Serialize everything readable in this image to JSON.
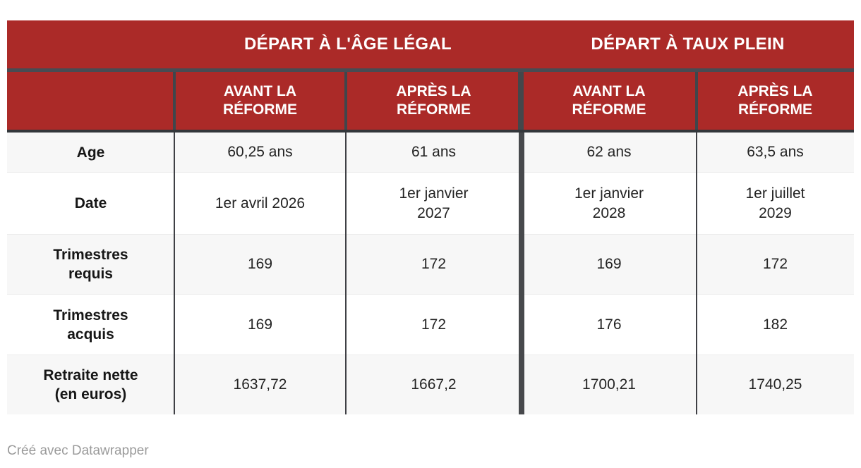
{
  "table": {
    "group_headers": [
      {
        "label": "DÉPART À L'ÂGE LÉGAL"
      },
      {
        "label": "DÉPART À TAUX PLEIN"
      }
    ],
    "column_headers": [
      {
        "label": "AVANT LA\nRÉFORME"
      },
      {
        "label": "APRÈS LA\nRÉFORME"
      },
      {
        "label": "AVANT LA\nRÉFORME"
      },
      {
        "label": "APRÈS LA\nRÉFORME"
      }
    ],
    "rows": [
      {
        "label": "Age",
        "values": [
          "60,25 ans",
          "61 ans",
          "62 ans",
          "63,5 ans"
        ]
      },
      {
        "label": "Date",
        "values": [
          "1er avril 2026",
          "1er janvier\n2027",
          "1er janvier\n2028",
          "1er juillet\n2029"
        ]
      },
      {
        "label": "Trimestres\nrequis",
        "values": [
          "169",
          "172",
          "169",
          "172"
        ]
      },
      {
        "label": "Trimestres\nacquis",
        "values": [
          "169",
          "172",
          "176",
          "182"
        ]
      },
      {
        "label": "Retraite nette\n(en euros)",
        "values": [
          "1637,72",
          "1667,2",
          "1700,21",
          "1740,25"
        ]
      }
    ]
  },
  "footer": {
    "credit": "Créé avec Datawrapper"
  },
  "colors": {
    "header_red": "#ab2a28",
    "separator_slate": "#474c53",
    "separator_dark": "#33373b",
    "divider_thin": "#3f4045",
    "divider_thick": "#47494c",
    "row_alt_gray": "#f7f7f7",
    "credit_gray": "#9b9b9b"
  },
  "chart_data": {
    "type": "table",
    "title": "",
    "column_groups": [
      "Départ à l'âge légal",
      "Départ à taux plein"
    ],
    "columns": [
      "",
      "Avant la réforme",
      "Après la réforme",
      "Avant la réforme",
      "Après la réforme"
    ],
    "rows": [
      [
        "Age",
        "60,25 ans",
        "61 ans",
        "62 ans",
        "63,5 ans"
      ],
      [
        "Date",
        "1er avril 2026",
        "1er janvier 2027",
        "1er janvier 2028",
        "1er juillet 2029"
      ],
      [
        "Trimestres requis",
        "169",
        "172",
        "169",
        "172"
      ],
      [
        "Trimestres acquis",
        "169",
        "172",
        "176",
        "182"
      ],
      [
        "Retraite nette (en euros)",
        "1637,72",
        "1667,2",
        "1700,21",
        "1740,25"
      ]
    ],
    "credit": "Créé avec Datawrapper"
  }
}
